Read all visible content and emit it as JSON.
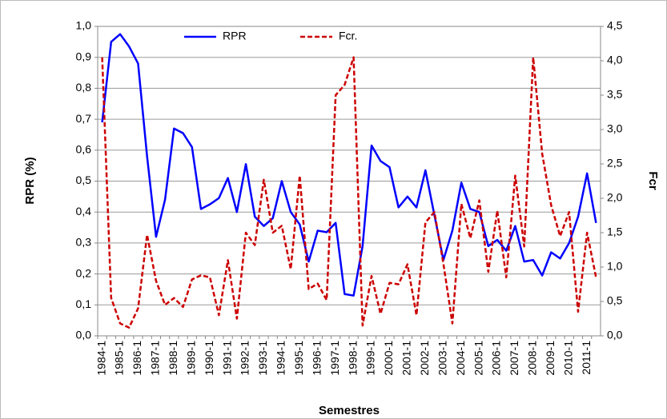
{
  "chart_data": {
    "type": "line",
    "categories": [
      "1984-1",
      null,
      "1985-1",
      null,
      "1986-1",
      null,
      "1987-1",
      null,
      "1988-1",
      null,
      "1989-1",
      null,
      "1990-1",
      null,
      "1991-1",
      null,
      "1992-1",
      null,
      "1993-1",
      null,
      "1994-1",
      null,
      "1995-1",
      null,
      "1996-1",
      null,
      "1997-1",
      null,
      "1998-1",
      null,
      "1999-1",
      null,
      "2000-1",
      null,
      "2001-1",
      null,
      "2002-1",
      null,
      "2003-1",
      null,
      "2004-1",
      null,
      "2005-1",
      null,
      "2006-1",
      null,
      "2007-1",
      null,
      "2008-1",
      null,
      "2009-1",
      null,
      "2010-1",
      null,
      "2011-1",
      null
    ],
    "x_label": "Semestres",
    "y_label": "RPR (%)",
    "y2_label": "Fcr",
    "series": [
      {
        "name": "RPR",
        "color": "#0000ff",
        "style": "solid",
        "values": [
          0.69,
          0.95,
          0.975,
          0.935,
          0.88,
          0.58,
          0.32,
          0.44,
          0.67,
          0.655,
          0.61,
          0.41,
          0.425,
          0.445,
          0.51,
          0.4,
          0.555,
          0.385,
          0.355,
          0.38,
          0.5,
          0.4,
          0.36,
          0.24,
          0.34,
          0.335,
          0.365,
          0.135,
          0.13,
          0.29,
          0.615,
          0.565,
          0.545,
          0.415,
          0.45,
          0.415,
          0.535,
          0.39,
          0.245,
          0.34,
          0.495,
          0.41,
          0.4,
          0.29,
          0.31,
          0.275,
          0.355,
          0.24,
          0.245,
          0.195,
          0.27,
          0.25,
          0.3,
          0.385,
          0.525,
          0.365
        ]
      },
      {
        "name": "Fcr.",
        "color": "#cc0000",
        "style": "dashed",
        "axis": "y2",
        "values": [
          4.05,
          0.55,
          0.18,
          0.12,
          0.4,
          1.47,
          0.8,
          0.45,
          0.55,
          0.42,
          0.82,
          0.88,
          0.85,
          0.3,
          1.1,
          0.25,
          1.5,
          1.32,
          2.27,
          1.5,
          1.6,
          0.97,
          2.33,
          0.68,
          0.76,
          0.52,
          3.5,
          3.65,
          4.05,
          0.15,
          0.87,
          0.32,
          0.77,
          0.75,
          1.04,
          0.3,
          1.65,
          1.8,
          1.05,
          0.18,
          1.92,
          1.42,
          1.97,
          0.93,
          1.82,
          0.85,
          2.33,
          1.3,
          4.05,
          2.65,
          1.9,
          1.45,
          1.8,
          0.35,
          1.5,
          0.85
        ]
      }
    ],
    "ylim": [
      0,
      1
    ],
    "yticks": [
      {
        "value": 0,
        "label": "0,0"
      },
      {
        "value": 0.1,
        "label": "0,1"
      },
      {
        "value": 0.2,
        "label": "0,2"
      },
      {
        "value": 0.3,
        "label": "0,3"
      },
      {
        "value": 0.4,
        "label": "0,4"
      },
      {
        "value": 0.5,
        "label": "0,5"
      },
      {
        "value": 0.6,
        "label": "0,6"
      },
      {
        "value": 0.7,
        "label": "0,7"
      },
      {
        "value": 0.8,
        "label": "0,8"
      },
      {
        "value": 0.9,
        "label": "0,9"
      },
      {
        "value": 1,
        "label": "1,0"
      }
    ],
    "y2lim": [
      0,
      4.5
    ],
    "y2ticks": [
      {
        "value": 0,
        "label": "0,0"
      },
      {
        "value": 0.5,
        "label": "0,5"
      },
      {
        "value": 1,
        "label": "1,0"
      },
      {
        "value": 1.5,
        "label": "1,5"
      },
      {
        "value": 2,
        "label": "2,0"
      },
      {
        "value": 2.5,
        "label": "2,5"
      },
      {
        "value": 3,
        "label": "3,0"
      },
      {
        "value": 3.5,
        "label": "3,5"
      },
      {
        "value": 4,
        "label": "4,0"
      },
      {
        "value": 4.5,
        "label": "4,5"
      }
    ],
    "grid": true,
    "legend": "top"
  }
}
